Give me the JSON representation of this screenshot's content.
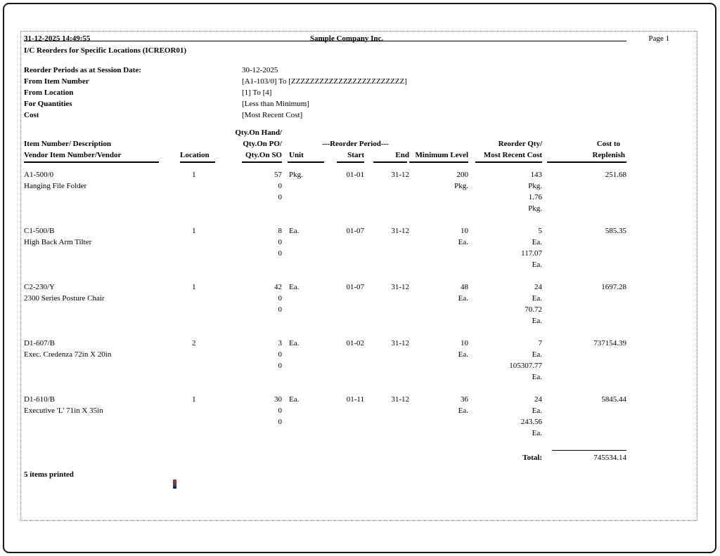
{
  "report": {
    "datetime": "31-12-2025 14:49:55",
    "company_name": "Sample Company Inc.",
    "page_number": "Page 1",
    "title": "I/C Reorders for Specific Locations (ICREOR01)"
  },
  "parameters": [
    {
      "label": "Reorder Periods as at Session Date:",
      "value": "30-12-2025"
    },
    {
      "label": "From Item Number",
      "value": "[A1-103/0] To [ZZZZZZZZZZZZZZZZZZZZZZZZ]"
    },
    {
      "label": "From Location",
      "value": "[1] To [4]"
    },
    {
      "label": "For Quantities",
      "value": "[Less than Minimum]"
    },
    {
      "label": "Cost",
      "value": "[Most Recent Cost]"
    }
  ],
  "table": {
    "headers": {
      "item_line1": "Item Number/ Description",
      "item_line2": "Vendor Item Number/Vendor",
      "location": "Location",
      "qty_line1": "Qty.On Hand/",
      "qty_line2": "Qty.On PO/",
      "qty_line3": "Qty.On SO",
      "unit": "Unit",
      "reorder_period": "---Reorder Period---",
      "start": "Start",
      "end": "End",
      "minimum_level": "Minimum Level",
      "reorder_line1": "Reorder Qty/",
      "reorder_line2": "Most Recent Cost",
      "cost_line1": "Cost to",
      "cost_line2": "Replenish"
    },
    "rows": [
      {
        "item_number": "A1-500/0",
        "description": "Hanging File Folder",
        "location": "1",
        "qty_on_hand": "57",
        "qty_on_po": "0",
        "qty_on_so": "0",
        "unit": "Pkg.",
        "start": "01-01",
        "end": "31-12",
        "minimum_level": "200",
        "minimum_unit": "Pkg.",
        "reorder_qty": "143",
        "reorder_unit": "Pkg.",
        "most_recent_cost": "1.76",
        "cost_unit": "Pkg.",
        "cost_to_replenish": "251.68"
      },
      {
        "item_number": "C1-500/B",
        "description": "High Back Arm Tilter",
        "location": "1",
        "qty_on_hand": "8",
        "qty_on_po": "0",
        "qty_on_so": "0",
        "unit": "Ea.",
        "start": "01-07",
        "end": "31-12",
        "minimum_level": "10",
        "minimum_unit": "Ea.",
        "reorder_qty": "5",
        "reorder_unit": "Ea.",
        "most_recent_cost": "117.07",
        "cost_unit": "Ea.",
        "cost_to_replenish": "585.35"
      },
      {
        "item_number": "C2-230/Y",
        "description": "2300 Series Posture Chair",
        "location": "1",
        "qty_on_hand": "42",
        "qty_on_po": "0",
        "qty_on_so": "0",
        "unit": "Ea.",
        "start": "01-07",
        "end": "31-12",
        "minimum_level": "48",
        "minimum_unit": "Ea.",
        "reorder_qty": "24",
        "reorder_unit": "Ea.",
        "most_recent_cost": "70.72",
        "cost_unit": "Ea.",
        "cost_to_replenish": "1697.28"
      },
      {
        "item_number": "D1-607/B",
        "description": "Exec. Credenza 72in X 20in",
        "location": "2",
        "qty_on_hand": "3",
        "qty_on_po": "0",
        "qty_on_so": "0",
        "unit": "Ea.",
        "start": "01-02",
        "end": "31-12",
        "minimum_level": "10",
        "minimum_unit": "Ea.",
        "reorder_qty": "7",
        "reorder_unit": "Ea.",
        "most_recent_cost": "105307.77",
        "cost_unit": "Ea.",
        "cost_to_replenish": "737154.39"
      },
      {
        "item_number": "D1-610/B",
        "description": "Executive 'L' 71in X 35in",
        "location": "1",
        "qty_on_hand": "30",
        "qty_on_po": "0",
        "qty_on_so": "0",
        "unit": "Ea.",
        "start": "01-11",
        "end": "31-12",
        "minimum_level": "36",
        "minimum_unit": "Ea.",
        "reorder_qty": "24",
        "reorder_unit": "Ea.",
        "most_recent_cost": "243.56",
        "cost_unit": "Ea.",
        "cost_to_replenish": "5845.44"
      }
    ],
    "total_label": "Total:",
    "total_value": "745534.14"
  },
  "footer": {
    "items_printed": "5 items printed"
  }
}
